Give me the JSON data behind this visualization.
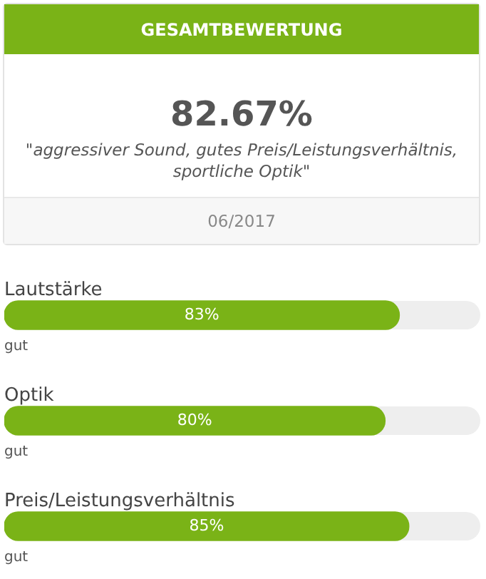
{
  "chart_data": {
    "type": "bar",
    "orientation": "horizontal",
    "title": "GESAMTBEWERTUNG",
    "categories": [
      "Lautstärke",
      "Optik",
      "Preis/Leistungsverhältnis"
    ],
    "values": [
      83,
      80,
      85
    ],
    "color": "#7ab317",
    "value_labels": [
      "83%",
      "80%",
      "85%"
    ],
    "xlim": [
      0,
      100
    ],
    "annotations": [
      "82.67%",
      "\"aggressiver Sound, gutes Preis/Leistungsverhältnis, sportliche Optik\"",
      "06/2017",
      {
        "text": "gut",
        "y": "Lautstärke"
      },
      {
        "text": "gut",
        "y": "Optik"
      },
      {
        "text": "gut",
        "y": "Preis/Leistungsverhältnis"
      }
    ],
    "legend": false
  }
}
